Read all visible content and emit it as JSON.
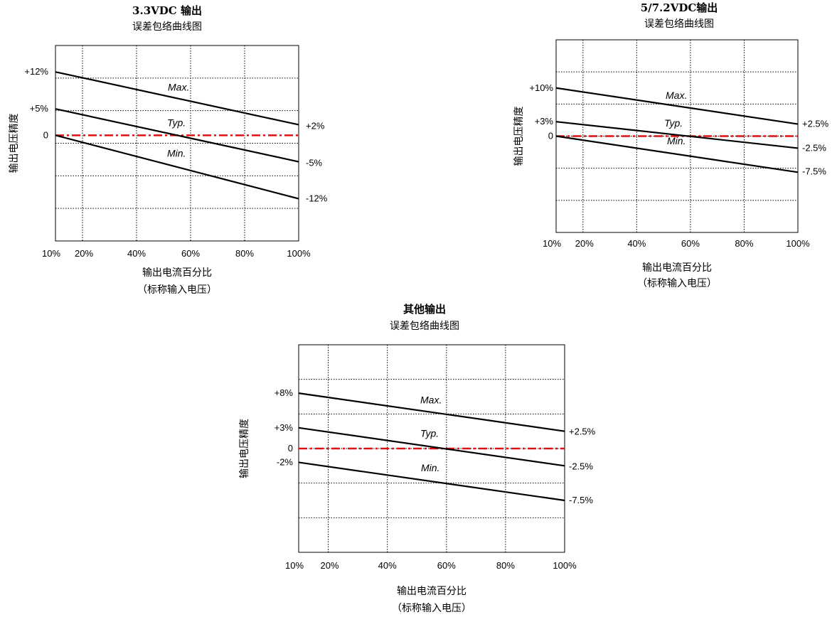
{
  "chart_data": [
    {
      "type": "line",
      "title": "3.3VDC 输出",
      "subtitle": "误差包络曲线图",
      "ylabel": "输出电压精度",
      "xlabel": "输出电流百分比",
      "xlabel2": "（标称输入电压）",
      "x_ticks": [
        "10%",
        "20%",
        "40%",
        "60%",
        "80%",
        "100%"
      ],
      "y_ticks": [
        "+12%",
        "+5%",
        "0"
      ],
      "xlim": [
        10,
        100
      ],
      "ylim": [
        -20,
        17
      ],
      "grid": true,
      "x": [
        10,
        100
      ],
      "series": [
        {
          "name": "Max.",
          "values": [
            12,
            2
          ],
          "end_label": "+2%"
        },
        {
          "name": "Typ.",
          "values": [
            5,
            -5
          ],
          "end_label": "-5%"
        },
        {
          "name": "Min.",
          "values": [
            0,
            -12
          ],
          "end_label": "-12%"
        }
      ],
      "reference_line": 0
    },
    {
      "type": "line",
      "title": "5/7.2VDC输出",
      "subtitle": "误差包络曲线图",
      "ylabel": "输出电压精度",
      "xlabel": "输出电流百分比",
      "xlabel2": "（标称输入电压）",
      "x_ticks": [
        "10%",
        "20%",
        "40%",
        "60%",
        "80%",
        "100%"
      ],
      "y_ticks": [
        "+10%",
        "+3%",
        "0"
      ],
      "xlim": [
        10,
        100
      ],
      "ylim": [
        -20,
        20
      ],
      "grid": true,
      "x": [
        10,
        100
      ],
      "series": [
        {
          "name": "Max.",
          "values": [
            10,
            2.5
          ],
          "end_label": "+2.5%"
        },
        {
          "name": "Typ.",
          "values": [
            3,
            -2.5
          ],
          "end_label": "-2.5%"
        },
        {
          "name": "Min.",
          "values": [
            0,
            -7.5
          ],
          "end_label": "-7.5%"
        }
      ],
      "reference_line": 0
    },
    {
      "type": "line",
      "title": "其他输出",
      "subtitle": "误差包络曲线图",
      "ylabel": "输出电压精度",
      "xlabel": "输出电流百分比",
      "xlabel2": "（标称输入电压）",
      "x_ticks": [
        "10%",
        "20%",
        "40%",
        "60%",
        "80%",
        "100%"
      ],
      "y_ticks": [
        "+8%",
        "+3%",
        "0",
        "-2%"
      ],
      "xlim": [
        10,
        100
      ],
      "ylim": [
        -15,
        15
      ],
      "grid": true,
      "x": [
        10,
        100
      ],
      "series": [
        {
          "name": "Max.",
          "values": [
            8,
            2.5
          ],
          "end_label": "+2.5%"
        },
        {
          "name": "Typ.",
          "values": [
            3,
            -2.5
          ],
          "end_label": "-2.5%"
        },
        {
          "name": "Min.",
          "values": [
            -2,
            -7.5
          ],
          "end_label": "-7.5%"
        }
      ],
      "reference_line": 0
    }
  ]
}
